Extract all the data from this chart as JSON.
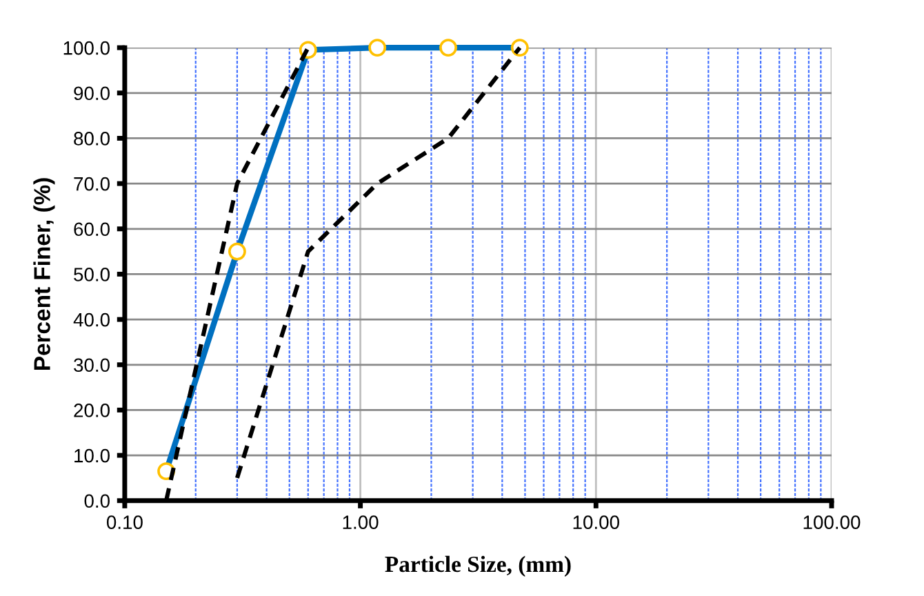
{
  "chart_data": {
    "type": "line",
    "xlabel": "Particle Size, (mm)",
    "ylabel": "Percent Finer, (%)",
    "log": "x",
    "xlim": [
      0.1,
      100
    ],
    "xticks": [
      {
        "value": 0.1,
        "label": "0.10"
      },
      {
        "value": 0.2,
        "label": null
      },
      {
        "value": 0.3,
        "label": null
      },
      {
        "value": 0.4,
        "label": null
      },
      {
        "value": 0.5,
        "label": null
      },
      {
        "value": 0.6,
        "label": null
      },
      {
        "value": 0.7,
        "label": null
      },
      {
        "value": 0.8,
        "label": null
      },
      {
        "value": 0.9,
        "label": null
      },
      {
        "value": 1,
        "label": "1.00"
      },
      {
        "value": 2,
        "label": null
      },
      {
        "value": 3,
        "label": null
      },
      {
        "value": 4,
        "label": null
      },
      {
        "value": 5,
        "label": null
      },
      {
        "value": 6,
        "label": null
      },
      {
        "value": 7,
        "label": null
      },
      {
        "value": 8,
        "label": null
      },
      {
        "value": 9,
        "label": null
      },
      {
        "value": 10,
        "label": "10.00"
      },
      {
        "value": 20,
        "label": null
      },
      {
        "value": 30,
        "label": null
      },
      {
        "value": 40,
        "label": null
      },
      {
        "value": 50,
        "label": null
      },
      {
        "value": 60,
        "label": null
      },
      {
        "value": 70,
        "label": null
      },
      {
        "value": 80,
        "label": null
      },
      {
        "value": 90,
        "label": null
      },
      {
        "value": 100,
        "label": "100.00"
      }
    ],
    "ylim": [
      0,
      100
    ],
    "yticks": [
      {
        "value": 0,
        "label": "0.0"
      },
      {
        "value": 10,
        "label": "10.0"
      },
      {
        "value": 20,
        "label": "20.0"
      },
      {
        "value": 30,
        "label": "30.0"
      },
      {
        "value": 40,
        "label": "40.0"
      },
      {
        "value": 50,
        "label": "50.0"
      },
      {
        "value": 60,
        "label": "60.0"
      },
      {
        "value": 70,
        "label": "70.0"
      },
      {
        "value": 80,
        "label": "80.0"
      },
      {
        "value": 90,
        "label": "90.0"
      },
      {
        "value": 100,
        "label": "100.0"
      }
    ],
    "grid": true,
    "legend": false,
    "series": [
      {
        "color": "#0070c0",
        "x": [
          0.15,
          0.3,
          0.6,
          1.18,
          2.36,
          4.75
        ],
        "values": [
          6.5,
          55,
          99.5,
          100,
          100,
          100
        ],
        "marker": "circle",
        "line_style": "solid"
      },
      {
        "color": "#000000",
        "x": [
          0.15,
          0.3,
          0.6
        ],
        "values": [
          0,
          70,
          100
        ],
        "marker": "none",
        "line_style": "dashed"
      },
      {
        "color": "#000000",
        "x": [
          0.3,
          0.6,
          1.18,
          2.36,
          4.75
        ],
        "values": [
          5,
          55,
          70,
          80,
          100
        ],
        "marker": "none",
        "line_style": "dashed"
      }
    ]
  }
}
